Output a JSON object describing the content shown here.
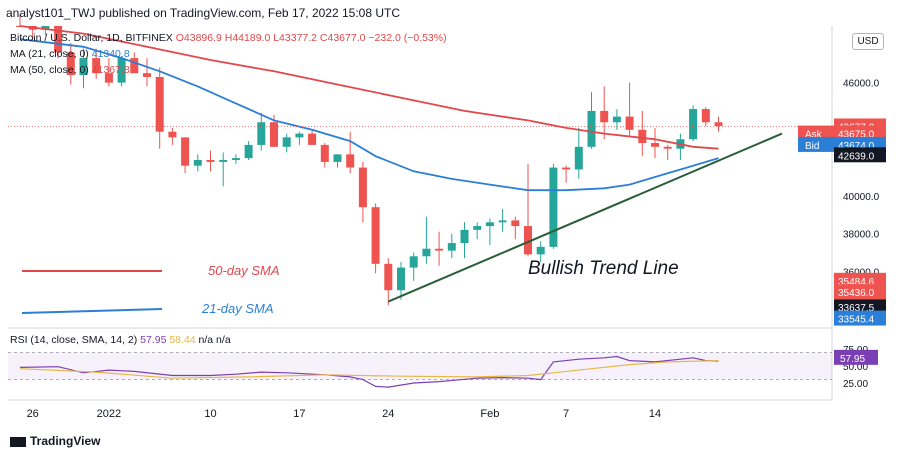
{
  "header": "analyst101_TWJ published on TradingView.com, Feb 17, 2022 15:08 UTC",
  "legend": {
    "symbol": "Bitcoin / U.S. Dollar, 1D, BITFINEX",
    "ohlc": "O43896.9  H44189.0  L43377.2  C43677.0  −232.0 (−0.53%)",
    "ma21_label": "MA (21, close, 0)",
    "ma21_value": "41340.8",
    "ma50_label": "MA (50, close, 0)",
    "ma50_value": "41367.8"
  },
  "rsi_legend": {
    "label": "RSI (14, close, SMA, 14, 2)",
    "rsi": "57.95",
    "sma": "58.44",
    "rest": "n/a  n/a"
  },
  "currency": "USD",
  "footer": "TradingView",
  "chart_data": {
    "type": "candlestick",
    "price_axis": {
      "ylim": [
        33000,
        49000
      ],
      "ticks": [
        36000,
        38000,
        40000,
        46000
      ],
      "tick_labels": [
        "36000.0",
        "38000.0",
        "40000.0",
        "46000.0"
      ]
    },
    "rsi_axis": {
      "ylim": [
        0,
        100
      ],
      "ticks": [
        25,
        50,
        75
      ],
      "tick_labels": [
        "25.00",
        "50.00",
        "75.00"
      ]
    },
    "x_labels": [
      {
        "label": "26",
        "i": 1
      },
      {
        "label": "2022",
        "i": 7
      },
      {
        "label": "10",
        "i": 15
      },
      {
        "label": "17",
        "i": 22
      },
      {
        "label": "24",
        "i": 29
      },
      {
        "label": "Feb",
        "i": 37
      },
      {
        "label": "7",
        "i": 43
      },
      {
        "label": "14",
        "i": 50
      }
    ],
    "candles": [
      [
        51900,
        52300,
        49600,
        50200
      ],
      [
        50200,
        51000,
        48300,
        48800
      ],
      [
        48800,
        50800,
        48500,
        50700
      ],
      [
        50700,
        50900,
        47300,
        47600
      ],
      [
        47600,
        48100,
        45900,
        46400
      ],
      [
        46400,
        47800,
        45700,
        47300
      ],
      [
        47300,
        47800,
        46200,
        46500
      ],
      [
        46500,
        47300,
        45800,
        46000
      ],
      [
        46000,
        47400,
        45800,
        47300
      ],
      [
        47300,
        47600,
        46600,
        46500
      ],
      [
        46500,
        47300,
        45800,
        46300
      ],
      [
        46300,
        46800,
        42500,
        43400
      ],
      [
        43400,
        43600,
        42700,
        43100
      ],
      [
        43100,
        43100,
        41200,
        41600
      ],
      [
        41600,
        42200,
        41300,
        41900
      ],
      [
        41900,
        42400,
        41300,
        41800
      ],
      [
        41800,
        42300,
        40500,
        41900
      ],
      [
        41900,
        42200,
        41700,
        42000
      ],
      [
        42000,
        42900,
        41900,
        42700
      ],
      [
        42700,
        44400,
        42400,
        43900
      ],
      [
        43900,
        44300,
        42600,
        42600
      ],
      [
        42600,
        43300,
        42300,
        43100
      ],
      [
        43100,
        43400,
        42700,
        43300
      ],
      [
        43300,
        43500,
        42800,
        42700
      ],
      [
        42700,
        42800,
        41500,
        41800
      ],
      [
        41800,
        42200,
        41500,
        42200
      ],
      [
        42200,
        43400,
        41200,
        41500
      ],
      [
        41500,
        41800,
        38600,
        39400
      ],
      [
        39400,
        39600,
        35900,
        36400
      ],
      [
        36400,
        36700,
        34200,
        35000
      ],
      [
        35000,
        36500,
        34500,
        36200
      ],
      [
        36200,
        37000,
        35500,
        36800
      ],
      [
        36800,
        38900,
        36400,
        37200
      ],
      [
        37200,
        38100,
        36300,
        37100
      ],
      [
        37100,
        38000,
        36700,
        37500
      ],
      [
        37500,
        38600,
        36700,
        38200
      ],
      [
        38200,
        38600,
        37700,
        38400
      ],
      [
        38400,
        38800,
        37400,
        38600
      ],
      [
        38600,
        39300,
        38100,
        38700
      ],
      [
        38700,
        38900,
        37700,
        38400
      ],
      [
        38400,
        41700,
        36800,
        36900
      ],
      [
        36900,
        37600,
        36500,
        37300
      ],
      [
        37300,
        41700,
        37200,
        41500
      ],
      [
        41500,
        41600,
        40700,
        41400
      ],
      [
        41400,
        43600,
        40900,
        42600
      ],
      [
        42600,
        45500,
        42500,
        44500
      ],
      [
        44500,
        45800,
        43000,
        43900
      ],
      [
        43900,
        44600,
        43500,
        44200
      ],
      [
        44200,
        46000,
        43200,
        43500
      ],
      [
        43500,
        44500,
        42100,
        42800
      ],
      [
        42800,
        43600,
        42000,
        42600
      ],
      [
        42600,
        42700,
        41900,
        42500
      ],
      [
        42500,
        43300,
        41900,
        43000
      ],
      [
        43000,
        44800,
        42900,
        44600
      ],
      [
        44600,
        44700,
        43700,
        43900
      ],
      [
        43900,
        44200,
        43400,
        43700
      ]
    ],
    "ma50": [
      [
        0,
        49100
      ],
      [
        5,
        48600
      ],
      [
        10,
        47900
      ],
      [
        15,
        47200
      ],
      [
        20,
        46600
      ],
      [
        25,
        45900
      ],
      [
        30,
        45200
      ],
      [
        35,
        44500
      ],
      [
        40,
        44000
      ],
      [
        43,
        43600
      ],
      [
        46,
        43300
      ],
      [
        50,
        43000
      ],
      [
        53,
        42600
      ],
      [
        55,
        42500
      ]
    ],
    "ma21": [
      [
        0,
        48300
      ],
      [
        5,
        47900
      ],
      [
        8,
        47300
      ],
      [
        11,
        46600
      ],
      [
        14,
        45800
      ],
      [
        17,
        44900
      ],
      [
        20,
        44000
      ],
      [
        23,
        43500
      ],
      [
        26,
        42900
      ],
      [
        28,
        42100
      ],
      [
        31,
        41300
      ],
      [
        34,
        40900
      ],
      [
        37,
        40600
      ],
      [
        40,
        40300
      ],
      [
        43,
        40300
      ],
      [
        46,
        40400
      ],
      [
        48,
        40600
      ],
      [
        50,
        41000
      ],
      [
        53,
        41600
      ],
      [
        55,
        42000
      ]
    ],
    "rsi": [
      [
        0,
        48
      ],
      [
        3,
        49
      ],
      [
        5,
        40
      ],
      [
        7,
        44
      ],
      [
        9,
        42
      ],
      [
        12,
        36
      ],
      [
        15,
        36
      ],
      [
        17,
        38
      ],
      [
        19,
        41
      ],
      [
        21,
        40
      ],
      [
        24,
        37
      ],
      [
        26,
        34
      ],
      [
        27,
        30
      ],
      [
        28,
        20
      ],
      [
        29,
        19
      ],
      [
        31,
        25
      ],
      [
        33,
        27
      ],
      [
        36,
        32
      ],
      [
        38,
        33
      ],
      [
        40,
        32
      ],
      [
        41,
        30
      ],
      [
        42,
        56
      ],
      [
        44,
        60
      ],
      [
        46,
        62
      ],
      [
        47,
        64
      ],
      [
        48,
        58
      ],
      [
        50,
        56
      ],
      [
        52,
        60
      ],
      [
        53,
        62
      ],
      [
        54,
        58
      ],
      [
        55,
        57
      ]
    ],
    "rsi_sma": [
      [
        0,
        46
      ],
      [
        6,
        41
      ],
      [
        12,
        32
      ],
      [
        18,
        34
      ],
      [
        24,
        37
      ],
      [
        30,
        35
      ],
      [
        36,
        34
      ],
      [
        40,
        36
      ],
      [
        42,
        40
      ],
      [
        45,
        46
      ],
      [
        48,
        52
      ],
      [
        51,
        56
      ],
      [
        55,
        58
      ]
    ],
    "price_tags": [
      {
        "value": "43677.0",
        "price": 43677,
        "bg": "#ef5350",
        "label": ""
      },
      {
        "value": "43675.0",
        "price": 43300,
        "bg": "#ef5350",
        "label": "Ask"
      },
      {
        "value": "43674.0",
        "price": 42700,
        "bg": "#2b7fd6",
        "label": "Bid"
      },
      {
        "value": "42639.0",
        "price": 42150,
        "bg": "#131722",
        "label": ""
      },
      {
        "value": "35484.6",
        "price": 35500,
        "bg": "#ef5350",
        "label": ""
      },
      {
        "value": "35436.0",
        "price": 34900,
        "bg": "#ef5350",
        "label": ""
      },
      {
        "value": "33637.5",
        "price": 34100,
        "bg": "#131722",
        "label": ""
      },
      {
        "value": "33545.4",
        "price": 33500,
        "bg": "#2b7fd6",
        "label": ""
      }
    ],
    "rsi_tag": {
      "value": "57.95",
      "rsi": 62
    },
    "trendline": {
      "label": "Bullish Trend Line",
      "from": [
        29,
        34400
      ],
      "to": [
        60,
        43300
      ]
    },
    "legend_lines": [
      {
        "label": "50-day SMA",
        "color": "#e0484b"
      },
      {
        "label": "21-day SMA",
        "color": "#2b7fd6"
      }
    ],
    "colors": {
      "up": "#26a69a",
      "down": "#ef5350",
      "ma21": "#2b7fd6",
      "ma50": "#e0484b",
      "rsi": "#7b3fb5",
      "rsi_sma": "#e6b84a",
      "trend": "#2a5e3a"
    }
  }
}
